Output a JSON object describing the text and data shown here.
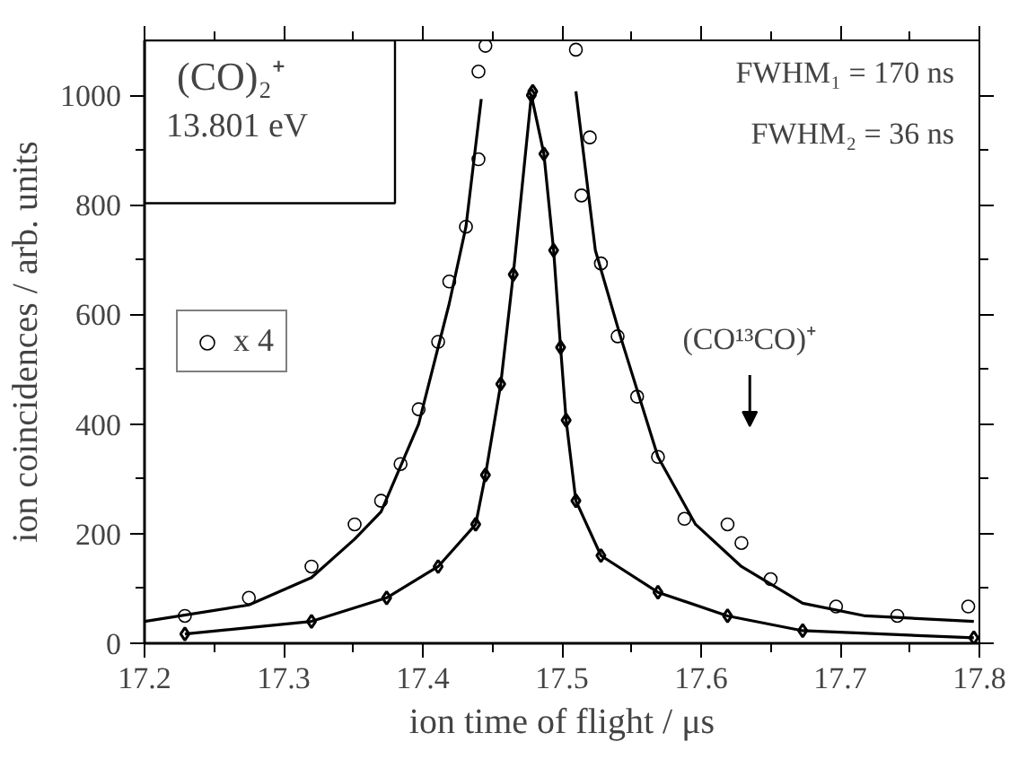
{
  "chart_data": {
    "type": "scatter",
    "xlabel": "ion time of flight / μs",
    "ylabel": "ion coincidences / arb. units",
    "xlim": [
      17.2,
      17.8
    ],
    "ylim": [
      0,
      1100
    ],
    "xticks": [
      17.2,
      17.3,
      17.4,
      17.5,
      17.6,
      17.7,
      17.8
    ],
    "yticks": [
      0,
      200,
      400,
      600,
      800,
      1000
    ],
    "grid": false,
    "legend": "left",
    "annotations": [
      "(CO)₂⁺",
      "13.801 eV",
      "FWHM₁ = 170 ns",
      "FWHM₂ = 36 ns",
      "(CO¹³CO)⁺"
    ],
    "series": [
      {
        "name": "x 4",
        "marker": "circle",
        "color": "#000000",
        "x": [
          17.229,
          17.275,
          17.32,
          17.351,
          17.37,
          17.384,
          17.397,
          17.411,
          17.419,
          17.431,
          17.44,
          17.44,
          17.445,
          17.51,
          17.514,
          17.52,
          17.528,
          17.54,
          17.554,
          17.569,
          17.588,
          17.619,
          17.629,
          17.65,
          17.697,
          17.741,
          17.792
        ],
        "values": [
          50,
          83,
          140,
          217,
          260,
          327,
          427,
          550,
          660,
          760,
          883,
          1043,
          1090,
          1083,
          817,
          923,
          693,
          560,
          450,
          340,
          227,
          217,
          183,
          117,
          67,
          50,
          67
        ]
      },
      {
        "marker": "diamond",
        "color": "#000000",
        "x": [
          17.229,
          17.32,
          17.374,
          17.411,
          17.438,
          17.445,
          17.456,
          17.465,
          17.478,
          17.479,
          17.487,
          17.494,
          17.499,
          17.503,
          17.51,
          17.528,
          17.569,
          17.619,
          17.673,
          17.796
        ],
        "values": [
          17,
          40,
          83,
          140,
          217,
          307,
          473,
          673,
          1000,
          1007,
          893,
          717,
          540,
          407,
          260,
          160,
          93,
          50,
          23,
          10
        ]
      },
      {
        "type": "line",
        "marker": "none",
        "color": "#000000",
        "x": [
          17.229,
          17.32,
          17.374,
          17.411,
          17.438,
          17.445,
          17.456,
          17.465,
          17.478,
          17.487,
          17.494,
          17.499,
          17.503,
          17.51,
          17.528,
          17.569,
          17.619,
          17.673,
          17.796
        ],
        "values": [
          17,
          40,
          83,
          140,
          217,
          307,
          473,
          673,
          1000,
          893,
          717,
          540,
          407,
          260,
          160,
          93,
          50,
          23,
          10
        ]
      },
      {
        "type": "line",
        "marker": "none",
        "color": "#000000",
        "x": [
          17.2,
          17.275,
          17.32,
          17.351,
          17.37,
          17.397,
          17.419,
          17.431,
          17.442,
          17.476,
          17.51,
          17.524,
          17.542,
          17.569,
          17.596,
          17.629,
          17.673,
          17.718,
          17.796
        ],
        "values": [
          40,
          70,
          120,
          190,
          240,
          400,
          620,
          760,
          993,
          null,
          1007,
          717,
          560,
          340,
          217,
          140,
          73,
          50,
          40
        ]
      }
    ]
  }
}
